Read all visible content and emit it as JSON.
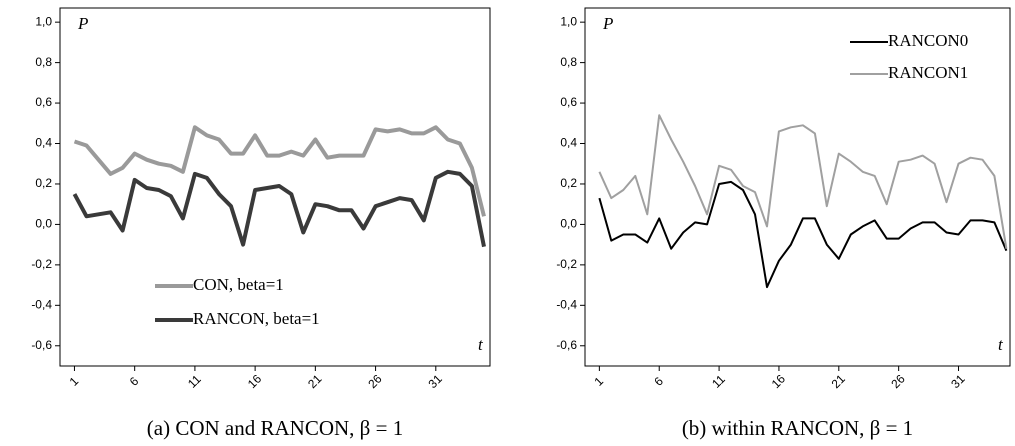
{
  "chart_data": [
    {
      "type": "line",
      "caption": "(a) CON and RANCON, β = 1",
      "y_label": "P",
      "x_label": "t",
      "x": [
        1,
        2,
        3,
        4,
        5,
        6,
        7,
        8,
        9,
        10,
        11,
        12,
        13,
        14,
        15,
        16,
        17,
        18,
        19,
        20,
        21,
        22,
        23,
        24,
        25,
        26,
        27,
        28,
        29,
        30,
        31,
        32,
        33,
        34,
        35
      ],
      "xlim": [
        -0.2,
        35.5
      ],
      "xticks": [
        1,
        6,
        11,
        16,
        21,
        26,
        31
      ],
      "ylim": [
        -0.7,
        1.07
      ],
      "yticks": [
        {
          "value": 1.0,
          "label": "1,0"
        },
        {
          "value": 0.8,
          "label": "0,8"
        },
        {
          "value": 0.6,
          "label": "0,6"
        },
        {
          "value": 0.4,
          "label": "0,4"
        },
        {
          "value": 0.2,
          "label": "0,2"
        },
        {
          "value": 0.0,
          "label": "0,0"
        },
        {
          "value": -0.2,
          "label": "-0,2"
        },
        {
          "value": -0.4,
          "label": "-0,4"
        },
        {
          "value": -0.6,
          "label": "-0,6"
        }
      ],
      "legend": "lower center",
      "line_width": 4,
      "series": [
        {
          "name": "CON, beta=1",
          "color": "#9a9a9a",
          "values": [
            0.41,
            0.39,
            0.32,
            0.25,
            0.28,
            0.35,
            0.32,
            0.3,
            0.29,
            0.26,
            0.48,
            0.44,
            0.42,
            0.35,
            0.35,
            0.44,
            0.34,
            0.34,
            0.36,
            0.34,
            0.42,
            0.33,
            0.34,
            0.34,
            0.34,
            0.47,
            0.46,
            0.47,
            0.45,
            0.45,
            0.48,
            0.42,
            0.4,
            0.28,
            0.04
          ]
        },
        {
          "name": "RANCON, beta=1",
          "color": "#3a3a3a",
          "values": [
            0.15,
            0.04,
            0.05,
            0.06,
            -0.03,
            0.22,
            0.18,
            0.17,
            0.14,
            0.03,
            0.25,
            0.23,
            0.15,
            0.09,
            -0.1,
            0.17,
            0.18,
            0.19,
            0.15,
            -0.04,
            0.1,
            0.09,
            0.07,
            0.07,
            -0.02,
            0.09,
            0.11,
            0.13,
            0.12,
            0.02,
            0.23,
            0.26,
            0.25,
            0.19,
            -0.11
          ]
        }
      ]
    },
    {
      "type": "line",
      "caption": "(b) within RANCON, β = 1",
      "y_label": "P",
      "x_label": "t",
      "x": [
        1,
        2,
        3,
        4,
        5,
        6,
        7,
        8,
        9,
        10,
        11,
        12,
        13,
        14,
        15,
        16,
        17,
        18,
        19,
        20,
        21,
        22,
        23,
        24,
        25,
        26,
        27,
        28,
        29,
        30,
        31,
        32,
        33,
        34,
        35
      ],
      "xlim": [
        -0.2,
        35.3
      ],
      "xticks": [
        1,
        6,
        11,
        16,
        21,
        26,
        31
      ],
      "ylim": [
        -0.7,
        1.07
      ],
      "yticks": [
        {
          "value": 1.0,
          "label": "1,0"
        },
        {
          "value": 0.8,
          "label": "0,8"
        },
        {
          "value": 0.6,
          "label": "0,6"
        },
        {
          "value": 0.4,
          "label": "0,4"
        },
        {
          "value": 0.2,
          "label": "0,2"
        },
        {
          "value": 0.0,
          "label": "0,0"
        },
        {
          "value": -0.2,
          "label": "-0,2"
        },
        {
          "value": -0.4,
          "label": "-0,4"
        },
        {
          "value": -0.6,
          "label": "-0,6"
        }
      ],
      "legend": "upper right",
      "line_width": 2,
      "series": [
        {
          "name": "RANCON0",
          "color": "#000000",
          "values": [
            0.13,
            -0.08,
            -0.05,
            -0.05,
            -0.09,
            0.03,
            -0.12,
            -0.04,
            0.01,
            0.0,
            0.2,
            0.21,
            0.17,
            0.05,
            -0.31,
            -0.18,
            -0.1,
            0.03,
            0.03,
            -0.1,
            -0.17,
            -0.05,
            -0.01,
            0.02,
            -0.07,
            -0.07,
            -0.02,
            0.01,
            0.01,
            -0.04,
            -0.05,
            0.02,
            0.02,
            0.01,
            -0.13
          ]
        },
        {
          "name": "RANCON1",
          "color": "#a0a0a0",
          "values": [
            0.26,
            0.13,
            0.17,
            0.24,
            0.05,
            0.54,
            0.42,
            0.31,
            0.19,
            0.05,
            0.29,
            0.27,
            0.19,
            0.16,
            -0.01,
            0.46,
            0.48,
            0.49,
            0.45,
            0.09,
            0.35,
            0.31,
            0.26,
            0.24,
            0.1,
            0.31,
            0.32,
            0.34,
            0.3,
            0.11,
            0.3,
            0.33,
            0.32,
            0.24,
            -0.12
          ]
        }
      ]
    }
  ]
}
